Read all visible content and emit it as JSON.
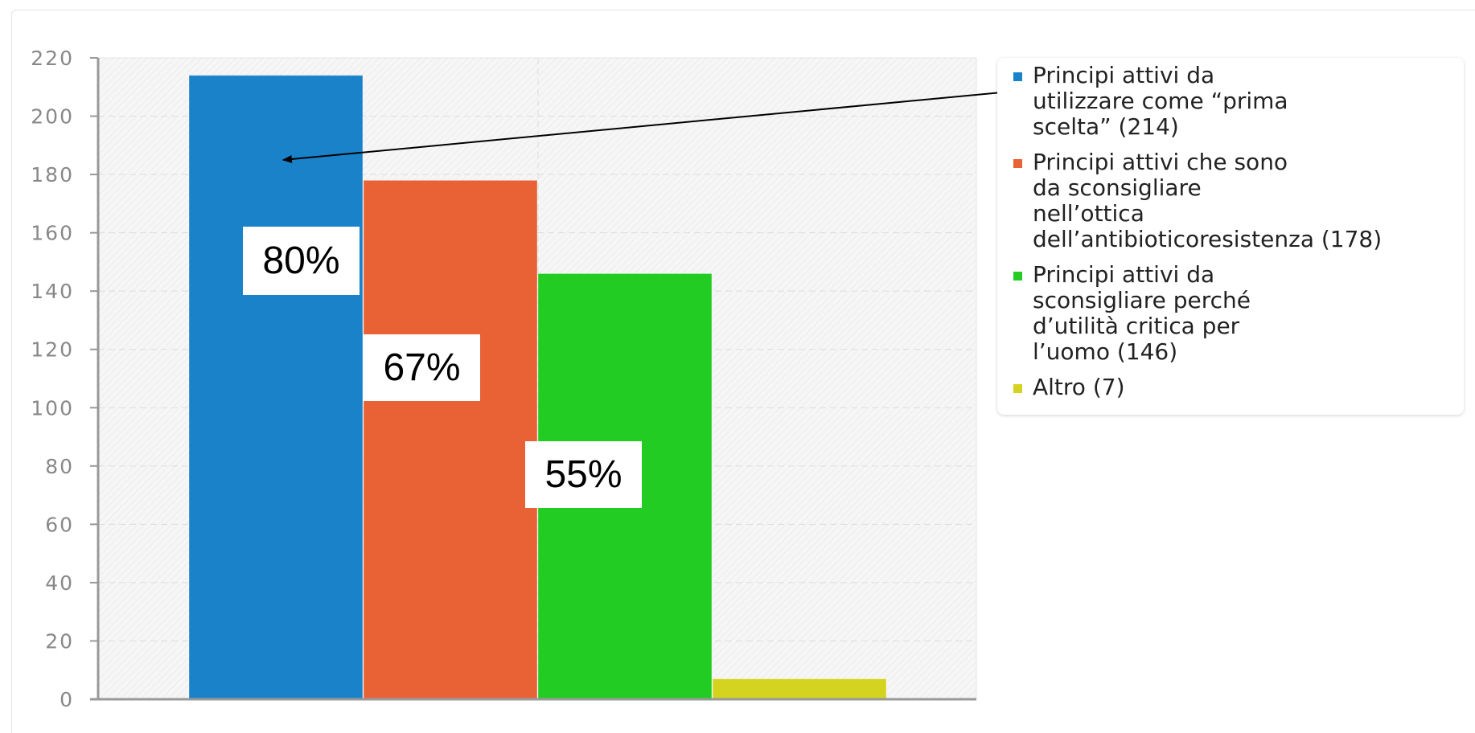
{
  "chart_data": {
    "type": "bar",
    "categories": [
      "Principi attivi da utilizzare come “prima scelta” (214)",
      "Principi attivi che sono da sconsigliare nell’ottica dell’antibioticoresistenza (178)",
      "Principi attivi da sconsigliare perché d’utilità critica per l’uomo (146)",
      "Altro (7)"
    ],
    "values": [
      214,
      178,
      146,
      7
    ],
    "colors": [
      "#1a82c9",
      "#e86236",
      "#22cc22",
      "#d4d420"
    ],
    "percent_labels": [
      "80%",
      "67%",
      "55%"
    ],
    "ylim": [
      0,
      220
    ],
    "yticks": [
      "0",
      "20",
      "40",
      "60",
      "80",
      "100",
      "120",
      "140",
      "160",
      "180",
      "200",
      "220"
    ],
    "grid": true,
    "legend_position": "right",
    "legend": [
      {
        "label": "Principi attivi da\nutilizzare  come “prima\nscelta” (214)",
        "color": "#1a82c9"
      },
      {
        "label": "Principi attivi che sono\nda sconsigliare\nnell’ottica\ndell’antibioticoresistenza (178)",
        "color": "#e86236"
      },
      {
        "label": "Principi attivi  da\nsconsigliare perché\nd’utilità critica per\nl’uomo (146)",
        "color": "#22cc22"
      },
      {
        "label": "Altro (7)",
        "color": "#d4d420"
      }
    ],
    "annotations": [
      {
        "type": "arrow",
        "from": "legend-item-1",
        "to": "bar-1"
      }
    ]
  }
}
